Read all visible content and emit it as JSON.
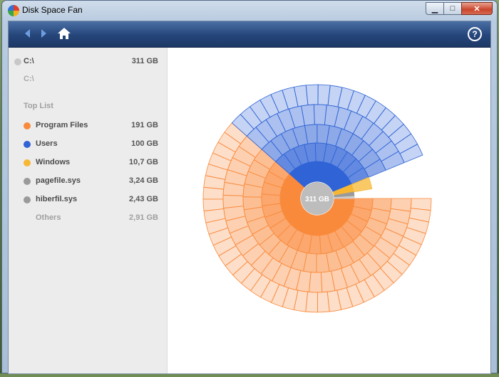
{
  "window": {
    "title": "Disk Space Fan",
    "controls": {
      "minimize": "▁",
      "maximize": "□",
      "close": "✕"
    }
  },
  "toolbar": {
    "help_label": "?"
  },
  "drive": {
    "name": "C:\\",
    "size": "311 GB",
    "path": "C:\\"
  },
  "toplist": {
    "header": "Top List",
    "items": [
      {
        "name": "Program Files",
        "size": "191 GB",
        "color": "#f98a3c"
      },
      {
        "name": "Users",
        "size": "100 GB",
        "color": "#2f63d6"
      },
      {
        "name": "Windows",
        "size": "10,7 GB",
        "color": "#f7b733"
      },
      {
        "name": "pagefile.sys",
        "size": "3,24 GB",
        "color": "#9a9a9a"
      },
      {
        "name": "hiberfil.sys",
        "size": "2,43 GB",
        "color": "#9a9a9a"
      }
    ],
    "others": {
      "name": "Others",
      "size": "2,91 GB"
    }
  },
  "chart_data": {
    "type": "sunburst",
    "center_label": "311 GB",
    "segments": [
      {
        "name": "Program Files",
        "size_gb": 191,
        "color": "#f98a3c"
      },
      {
        "name": "Users",
        "size_gb": 100,
        "color": "#2f63d6"
      },
      {
        "name": "Windows",
        "size_gb": 10.7,
        "color": "#f7b733"
      },
      {
        "name": "pagefile.sys",
        "size_gb": 3.24,
        "color": "#9a9a9a"
      },
      {
        "name": "hiberfil.sys",
        "size_gb": 2.43,
        "color": "#9a9a9a"
      },
      {
        "name": "Others",
        "size_gb": 2.91,
        "color": "#cccccc"
      }
    ]
  }
}
